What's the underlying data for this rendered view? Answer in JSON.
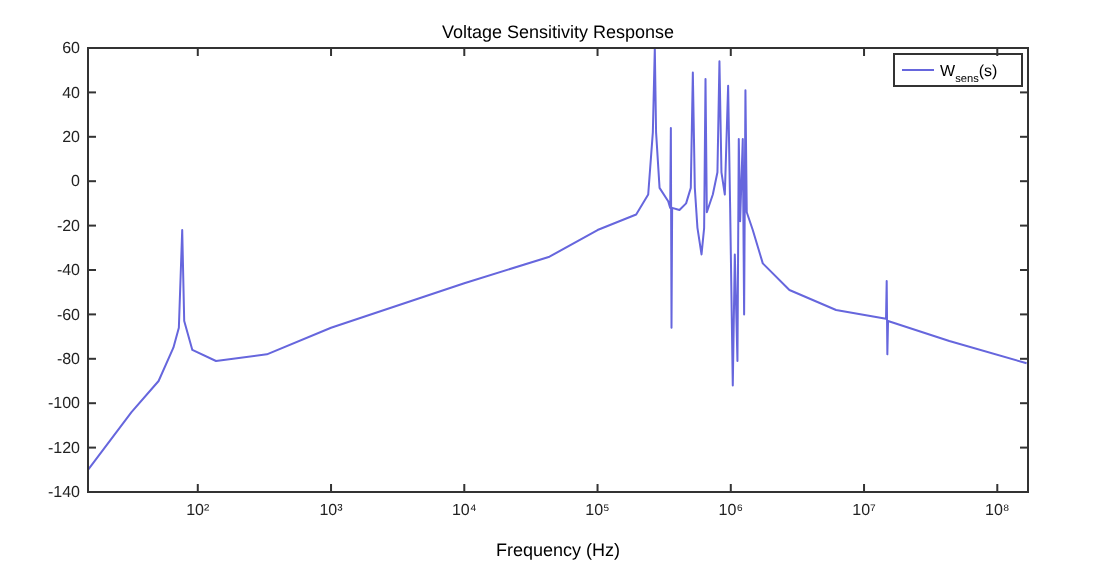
{
  "chart_data": {
    "type": "line",
    "title": "Voltage Sensitivity Response",
    "xlabel": "Frequency  (Hz)",
    "log": "x",
    "grid": false,
    "legend": "top right",
    "marker": "none",
    "line_style": "solid",
    "xlim": [
      15,
      170000000
    ],
    "xticks": [
      {
        "value": 100,
        "label": "10²"
      },
      {
        "value": 1000,
        "label": "10³"
      },
      {
        "value": 10000,
        "label": "10⁴"
      },
      {
        "value": 100000,
        "label": "10⁵"
      },
      {
        "value": 1000000,
        "label": "10⁶"
      },
      {
        "value": 10000000,
        "label": "10⁷"
      },
      {
        "value": 100000000,
        "label": "10⁸"
      }
    ],
    "ylim": [
      -140,
      60
    ],
    "yticks": [
      -140,
      -120,
      -100,
      -80,
      -60,
      -40,
      -20,
      0,
      20,
      40,
      60
    ],
    "x": [
      15,
      31.8,
      50.8,
      65.6,
      72.1,
      76.4,
      79.1,
      91,
      137,
      330,
      1000,
      10000,
      43600,
      100000,
      195000,
      240000,
      260000,
      269000,
      275000,
      292000,
      339000,
      351000,
      355000,
      359000,
      363000,
      412000,
      462000,
      501000,
      519000,
      537000,
      562000,
      603000,
      631000,
      646000,
      661000,
      733000,
      794000,
      822000,
      851000,
      902000,
      955000,
      989000,
      1035000,
      1072000,
      1122000,
      1148000,
      1175000,
      1230000,
      1259000,
      1288000,
      1318000,
      1462000,
      1738000,
      2754000,
      6166000,
      14620000,
      14790000,
      14960000,
      15140000,
      43650000,
      166000000
    ],
    "series": [
      {
        "name": "W$_{sens}$(s)",
        "color": "#6666dd",
        "values": [
          -130,
          -104,
          -90,
          -75,
          -66,
          -22,
          -63,
          -76,
          -81,
          -78,
          -66,
          -46,
          -34,
          -22,
          -15,
          -6,
          22,
          60,
          22,
          -3,
          -9,
          -12,
          24,
          -66,
          -12,
          -13,
          -10,
          -3,
          49,
          -3,
          -21,
          -33,
          -21,
          46,
          -14,
          -6,
          4,
          54,
          4,
          -6,
          43,
          -12,
          -92,
          -33,
          -81,
          19,
          -18,
          19,
          -60,
          41,
          -14,
          -22,
          -37,
          -49,
          -58,
          -62,
          -45,
          -78,
          -63,
          -72,
          -82
        ]
      }
    ]
  }
}
